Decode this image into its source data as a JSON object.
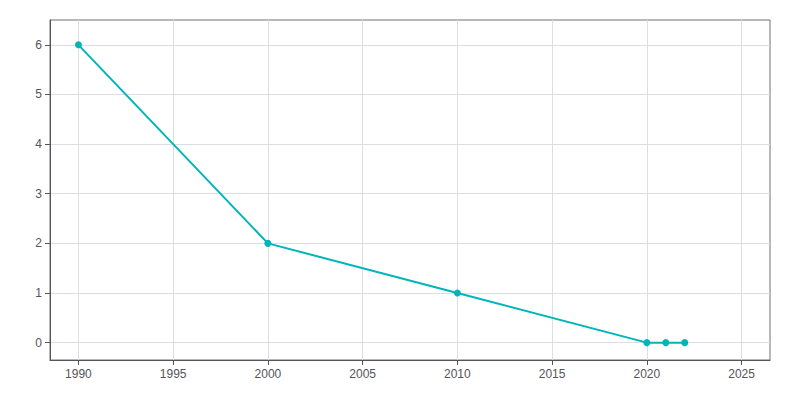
{
  "chart_data": {
    "type": "line",
    "x": [
      1990,
      2000,
      2010,
      2020,
      2021,
      2022
    ],
    "values": [
      6,
      2,
      1,
      0,
      0,
      0
    ],
    "color": "#00b5b8",
    "marker": "circle",
    "xlim": [
      1988.5,
      2026.5
    ],
    "xticks": [
      1990,
      1995,
      2000,
      2005,
      2010,
      2015,
      2020,
      2025
    ],
    "ylim": [
      -0.35,
      6.5
    ],
    "yticks": [
      0,
      1,
      2,
      3,
      4,
      5,
      6
    ],
    "grid": true
  }
}
